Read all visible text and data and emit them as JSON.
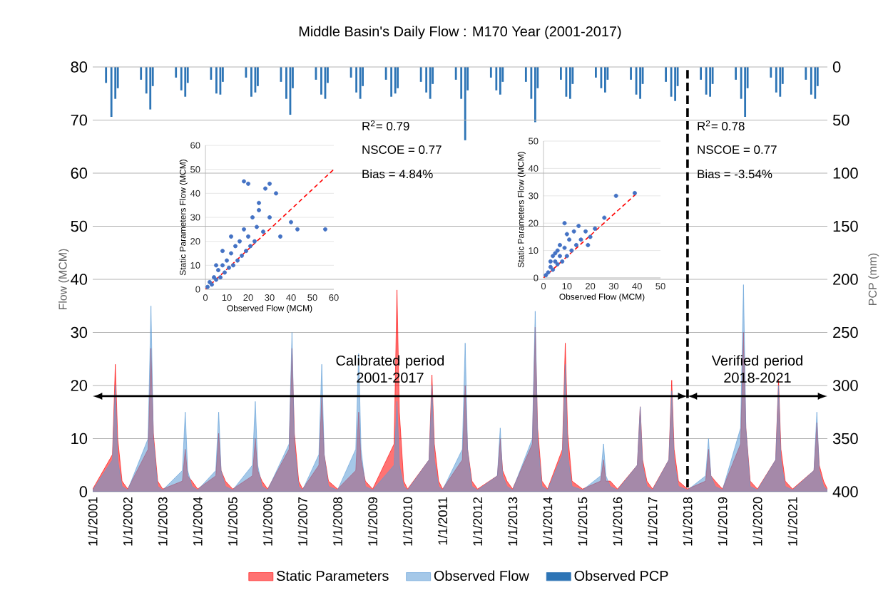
{
  "chart_data": [
    {
      "type": "area",
      "title": "Middle Basin's Daily Flow : M170 Year (2001-2017)",
      "ylabel": "Flow (MCM)",
      "y2label": "PCP (mm)",
      "x": [
        "2001-01-01",
        "2001-07-26",
        "2001-08-25",
        "2001-09-19",
        "2001-11-03",
        "2002-01-01",
        "2002-08-02",
        "2002-09-01",
        "2002-09-26",
        "2002-11-10",
        "2003-01-01",
        "2003-07-26",
        "2003-08-25",
        "2003-09-19",
        "2003-11-03",
        "2004-01-01",
        "2004-07-09",
        "2004-08-08",
        "2004-09-02",
        "2004-10-17",
        "2005-01-01",
        "2005-07-26",
        "2005-08-25",
        "2005-09-19",
        "2005-11-03",
        "2006-01-01",
        "2006-08-13",
        "2006-09-12",
        "2006-10-07",
        "2006-11-21",
        "2007-01-01",
        "2007-06-20",
        "2007-07-20",
        "2007-08-14",
        "2007-09-28",
        "2008-01-01",
        "2008-07-09",
        "2008-08-08",
        "2008-09-02",
        "2008-10-17",
        "2009-01-01",
        "2009-08-13",
        "2009-09-12",
        "2009-10-07",
        "2009-11-21",
        "2010-01-01",
        "2010-08-13",
        "2010-09-12",
        "2010-10-07",
        "2010-11-21",
        "2011-01-01",
        "2011-07-26",
        "2011-08-25",
        "2011-09-19",
        "2011-11-03",
        "2012-01-01",
        "2012-07-26",
        "2012-08-25",
        "2012-09-19",
        "2012-11-03",
        "2013-01-01",
        "2013-07-26",
        "2013-08-25",
        "2013-09-19",
        "2013-11-03",
        "2014-01-01",
        "2014-06-05",
        "2014-07-05",
        "2014-07-30",
        "2014-09-13",
        "2015-01-01",
        "2015-07-09",
        "2015-08-08",
        "2015-09-02",
        "2015-10-17",
        "2016-01-01",
        "2016-07-26",
        "2016-08-25",
        "2016-09-19",
        "2016-11-03",
        "2017-01-01",
        "2017-06-20",
        "2017-07-20",
        "2017-08-14",
        "2017-09-28",
        "2018-01-01",
        "2018-07-09",
        "2018-08-08",
        "2018-09-02",
        "2018-10-17",
        "2019-01-01",
        "2019-07-09",
        "2019-08-08",
        "2019-09-02",
        "2019-10-17",
        "2020-01-01",
        "2020-07-09",
        "2020-08-08",
        "2020-09-02",
        "2020-10-17",
        "2021-01-01",
        "2021-08-13",
        "2021-09-12",
        "2021-10-07",
        "2021-11-21",
        "2021-12-31"
      ],
      "xlim": [
        "2001-01-01",
        "2021-12-31"
      ],
      "xticks": [
        {
          "value": "2001-01-01",
          "label": "1/1/2001"
        },
        {
          "value": "2002-01-01",
          "label": "1/1/2002"
        },
        {
          "value": "2003-01-01",
          "label": "1/1/2003"
        },
        {
          "value": "2004-01-01",
          "label": "1/1/2004"
        },
        {
          "value": "2005-01-01",
          "label": "1/1/2005"
        },
        {
          "value": "2006-01-01",
          "label": "1/1/2006"
        },
        {
          "value": "2007-01-01",
          "label": "1/1/2007"
        },
        {
          "value": "2008-01-01",
          "label": "1/1/2008"
        },
        {
          "value": "2009-01-01",
          "label": "1/1/2009"
        },
        {
          "value": "2010-01-01",
          "label": "1/1/2010"
        },
        {
          "value": "2011-01-01",
          "label": "1/1/2011"
        },
        {
          "value": "2012-01-01",
          "label": "1/1/2012"
        },
        {
          "value": "2013-01-01",
          "label": "1/1/2013"
        },
        {
          "value": "2014-01-01",
          "label": "1/1/2014"
        },
        {
          "value": "2015-01-01",
          "label": "1/1/2015"
        },
        {
          "value": "2016-01-01",
          "label": "1/1/2016"
        },
        {
          "value": "2017-01-01",
          "label": "1/1/2017"
        },
        {
          "value": "2018-01-01",
          "label": "1/1/2018"
        },
        {
          "value": "2019-01-01",
          "label": "1/1/2019"
        },
        {
          "value": "2020-01-01",
          "label": "1/1/2020"
        },
        {
          "value": "2021-01-01",
          "label": "1/1/2021"
        }
      ],
      "ylim": [
        0,
        80
      ],
      "yticks": [
        0,
        10,
        20,
        30,
        40,
        50,
        60,
        70,
        80
      ],
      "y2lim": [
        400,
        0
      ],
      "y2ticks": [
        0,
        50,
        100,
        150,
        200,
        250,
        300,
        350,
        400
      ],
      "grid": "y",
      "legend": "bottom",
      "series": [
        {
          "name": "Static Parameters",
          "color": "#ff0000",
          "values": [
            0.5,
            7,
            24,
            10,
            2,
            0.5,
            8,
            27,
            11,
            2,
            0.5,
            2,
            8,
            3,
            2,
            0.5,
            3,
            11,
            4,
            2,
            0.5,
            3,
            10,
            4,
            2,
            0.5,
            8,
            27,
            11,
            2,
            0.5,
            5,
            18,
            7,
            2,
            0.5,
            4,
            15,
            6,
            2,
            0.5,
            9,
            38,
            15,
            2,
            0.5,
            6,
            22,
            9,
            2,
            0.5,
            6,
            20,
            8,
            2,
            0.5,
            3,
            10,
            4,
            2,
            0.5,
            9,
            31,
            12,
            2,
            0.5,
            8,
            28,
            11,
            2,
            0.5,
            2,
            6,
            2,
            2,
            0.5,
            5,
            16,
            6,
            2,
            0.5,
            6,
            21,
            8,
            2,
            0.5,
            2,
            8,
            3,
            2,
            0.5,
            9,
            30,
            12,
            2,
            0.5,
            6,
            21,
            8,
            2,
            0.5,
            4,
            13,
            5,
            2,
            0.5
          ]
        },
        {
          "name": "Observed Flow",
          "color": "#5b9bd5",
          "values": [
            0.3,
            6,
            20,
            6,
            1,
            0.3,
            10,
            35,
            10,
            1,
            0.3,
            4,
            15,
            4,
            1,
            0.3,
            4,
            15,
            4,
            1,
            0.3,
            5,
            17,
            5,
            1,
            0.3,
            9,
            30,
            9,
            1,
            0.3,
            7,
            24,
            7,
            1,
            0.3,
            8,
            26,
            8,
            1,
            0.3,
            5,
            17,
            5,
            1,
            0.3,
            6,
            20,
            6,
            1,
            0.3,
            8,
            28,
            8,
            1,
            0.3,
            3,
            12,
            3,
            1,
            0.3,
            10,
            34,
            10,
            1,
            0.3,
            7,
            24,
            7,
            1,
            0.3,
            3,
            9,
            3,
            1,
            0.3,
            5,
            16,
            5,
            1,
            0.3,
            6,
            19,
            6,
            1,
            0.3,
            3,
            10,
            3,
            1,
            0.3,
            12,
            39,
            12,
            1,
            0.3,
            6,
            20,
            6,
            1,
            0.3,
            4,
            15,
            4,
            1,
            0.3
          ]
        },
        {
          "name": "Observed PCP",
          "type": "bar",
          "axis": "y2",
          "color": "#2e75b6",
          "x": [
            "2001-05-20",
            "2001-07-15",
            "2001-08-25",
            "2001-09-20",
            "2002-05-20",
            "2002-07-15",
            "2002-08-25",
            "2002-09-20",
            "2003-05-20",
            "2003-07-15",
            "2003-08-25",
            "2003-09-20",
            "2004-05-20",
            "2004-07-15",
            "2004-08-25",
            "2004-09-20",
            "2005-05-20",
            "2005-07-15",
            "2005-08-25",
            "2005-09-20",
            "2006-05-20",
            "2006-07-15",
            "2006-08-25",
            "2006-09-20",
            "2007-05-20",
            "2007-07-15",
            "2007-08-25",
            "2007-09-20",
            "2008-05-20",
            "2008-07-15",
            "2008-08-25",
            "2008-09-20",
            "2009-05-20",
            "2009-07-15",
            "2009-08-25",
            "2009-09-20",
            "2010-05-20",
            "2010-07-15",
            "2010-08-25",
            "2010-09-20",
            "2011-05-20",
            "2011-07-15",
            "2011-08-25",
            "2011-09-20",
            "2012-05-20",
            "2012-07-15",
            "2012-08-25",
            "2012-09-20",
            "2013-05-20",
            "2013-07-15",
            "2013-08-25",
            "2013-09-20",
            "2014-05-20",
            "2014-07-15",
            "2014-08-25",
            "2014-09-20",
            "2015-05-20",
            "2015-07-15",
            "2015-08-25",
            "2015-09-20",
            "2016-05-20",
            "2016-07-15",
            "2016-08-25",
            "2016-09-20",
            "2017-05-20",
            "2017-07-15",
            "2017-08-25",
            "2017-09-20",
            "2018-05-20",
            "2018-07-15",
            "2018-08-25",
            "2018-09-20",
            "2019-05-20",
            "2019-07-15",
            "2019-08-25",
            "2019-09-20",
            "2020-05-20",
            "2020-07-15",
            "2020-08-25",
            "2020-09-20",
            "2021-05-20",
            "2021-07-15",
            "2021-08-25",
            "2021-09-20"
          ],
          "values": [
            15,
            47,
            30,
            20,
            12,
            25,
            40,
            18,
            10,
            22,
            28,
            15,
            12,
            25,
            26,
            14,
            10,
            28,
            24,
            18,
            14,
            30,
            45,
            20,
            12,
            26,
            30,
            15,
            10,
            24,
            30,
            18,
            12,
            28,
            25,
            20,
            14,
            24,
            30,
            16,
            12,
            30,
            69,
            22,
            10,
            22,
            26,
            14,
            14,
            30,
            52,
            20,
            12,
            28,
            30,
            16,
            10,
            20,
            24,
            12,
            12,
            26,
            30,
            16,
            14,
            28,
            32,
            18,
            12,
            26,
            28,
            16,
            12,
            30,
            47,
            20,
            10,
            24,
            28,
            16,
            12,
            26,
            30,
            18
          ]
        }
      ],
      "ref_lines": [
        {
          "axis": "x",
          "value": "2018-01-01",
          "color": "#000000",
          "line_style": "dashed"
        }
      ],
      "annotations": [
        "Calibrated period 2001-2017",
        "Verified period 2018-2021"
      ]
    },
    {
      "type": "scatter",
      "xlabel": "Observed Flow (MCM)",
      "ylabel": "Static Parameters Flow (MCM)",
      "xlim": [
        0,
        60
      ],
      "ylim": [
        0,
        60
      ],
      "xticks": [
        0,
        10,
        20,
        30,
        40,
        50,
        60
      ],
      "yticks": [
        0,
        10,
        20,
        30,
        40,
        50,
        60
      ],
      "grid": "y",
      "marker": "circle",
      "series": [
        {
          "color": "#4472c4",
          "x": [
            1,
            2,
            3,
            4,
            5,
            6,
            7,
            8,
            9,
            10,
            11,
            12,
            13,
            14,
            15,
            16,
            17,
            18,
            19,
            20,
            21,
            22,
            23,
            24,
            25,
            27,
            28,
            30,
            33,
            18,
            20,
            25,
            35,
            40,
            43,
            56,
            30,
            12,
            8,
            5
          ],
          "values": [
            1,
            3,
            2,
            5,
            4,
            8,
            5,
            10,
            7,
            12,
            9,
            15,
            10,
            18,
            12,
            20,
            14,
            25,
            16,
            22,
            18,
            30,
            20,
            26,
            36,
            24,
            42,
            44,
            40,
            45,
            44,
            33,
            22,
            28,
            25,
            25,
            30,
            22,
            16,
            10
          ]
        },
        {
          "type": "line",
          "color": "#ff0000",
          "line_style": "dashed",
          "marker": "none",
          "x": [
            0,
            60
          ],
          "values": [
            0,
            50
          ]
        }
      ],
      "annotations": [
        "R$^{2}$= 0.79",
        "NSCOE = 0.77",
        "Bias = 4.84%"
      ]
    },
    {
      "type": "scatter",
      "xlabel": "Observed Flow (MCM)",
      "ylabel": "Static Parameters Flow (MCM)",
      "xlim": [
        0,
        50
      ],
      "ylim": [
        0,
        50
      ],
      "xticks": [
        0,
        10,
        20,
        30,
        40,
        50
      ],
      "yticks": [
        0,
        10,
        20,
        30,
        40,
        50
      ],
      "grid": "y",
      "marker": "circle",
      "series": [
        {
          "color": "#4472c4",
          "x": [
            1,
            2,
            3,
            4,
            5,
            6,
            7,
            8,
            9,
            10,
            11,
            12,
            13,
            14,
            15,
            16,
            18,
            20,
            22,
            9,
            26,
            31,
            39,
            3,
            5,
            7,
            10,
            19,
            4,
            6
          ],
          "values": [
            1,
            2,
            4,
            3,
            6,
            5,
            8,
            6,
            11,
            8,
            14,
            10,
            17,
            12,
            19,
            14,
            17,
            15,
            18,
            20,
            22,
            30,
            31,
            6,
            9,
            12,
            16,
            12,
            8,
            10
          ]
        },
        {
          "type": "line",
          "color": "#ff0000",
          "line_style": "dashed",
          "marker": "none",
          "x": [
            0,
            40
          ],
          "values": [
            0,
            31
          ]
        }
      ],
      "annotations": [
        "R$^{2}$= 0.78",
        "NSCOE = 0.77",
        "Bias = -3.54%"
      ]
    }
  ]
}
